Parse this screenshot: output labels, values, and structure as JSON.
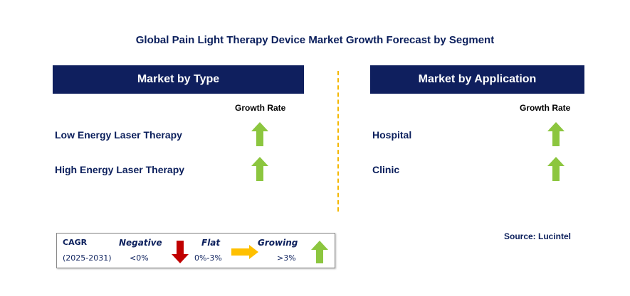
{
  "title": "Global Pain Light Therapy Device Market Growth Forecast by Segment",
  "left_panel": {
    "header": "Market by Type",
    "growth_label": "Growth Rate",
    "rows": [
      {
        "label": "Low Energy Laser Therapy",
        "trend": "growing"
      },
      {
        "label": "High Energy Laser Therapy",
        "trend": "growing"
      }
    ]
  },
  "right_panel": {
    "header": "Market by Application",
    "growth_label": "Growth Rate",
    "rows": [
      {
        "label": "Hospital",
        "trend": "growing"
      },
      {
        "label": "Clinic",
        "trend": "growing"
      }
    ]
  },
  "legend": {
    "cagr_label": "CAGR",
    "period": "(2025-2031)",
    "negative": {
      "label": "Negative",
      "range": "<0%"
    },
    "flat": {
      "label": "Flat",
      "range": "0%-3%"
    },
    "growing": {
      "label": "Growing",
      "range": ">3%"
    }
  },
  "source": "Source: Lucintel",
  "colors": {
    "header_bg": "#0f1f5e",
    "text_navy": "#0b1f5c",
    "up_arrow": "#8cc63f",
    "down_arrow": "#c00000",
    "flat_arrow": "#ffc000",
    "divider": "#f5b800"
  },
  "icons": {
    "growing": "up-arrow-icon",
    "negative": "down-arrow-icon",
    "flat": "right-arrow-icon"
  }
}
